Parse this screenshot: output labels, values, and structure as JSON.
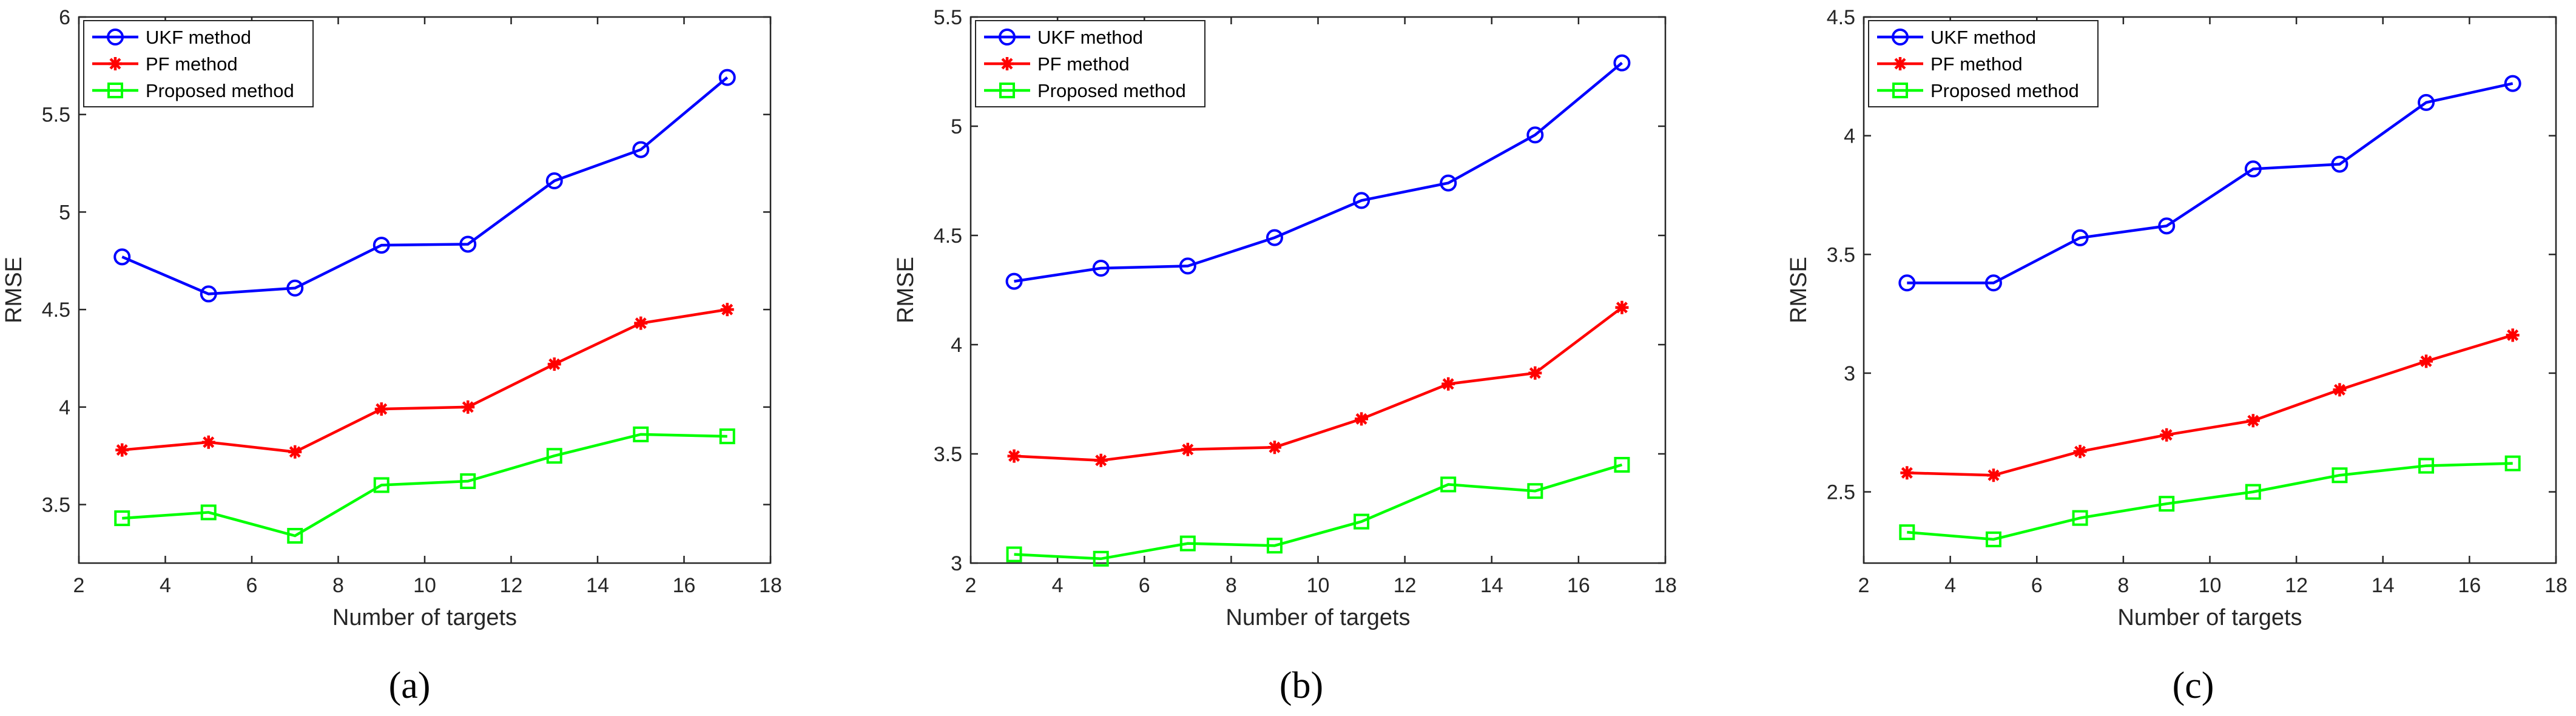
{
  "figure": {
    "captions": [
      "(a)",
      "(b)",
      "(c)"
    ]
  },
  "chart_data": [
    {
      "type": "line",
      "xlabel": "Number of targets",
      "ylabel": "RMSE",
      "xlim": [
        2,
        18
      ],
      "ylim": [
        3.2,
        6
      ],
      "xticks": [
        2,
        4,
        6,
        8,
        10,
        12,
        14,
        16,
        18
      ],
      "yticks": [
        3.5,
        4,
        4.5,
        5,
        5.5,
        6
      ],
      "x": [
        3,
        5,
        7,
        9,
        11,
        13,
        15,
        17
      ],
      "legend_position": "top-left",
      "series": [
        {
          "name": "UKF method",
          "color": "#0000ff",
          "marker": "circle",
          "values": [
            4.77,
            4.58,
            4.61,
            4.83,
            4.835,
            5.16,
            5.32,
            5.69
          ]
        },
        {
          "name": "PF method",
          "color": "#ff0000",
          "marker": "star",
          "values": [
            3.78,
            3.82,
            3.77,
            3.99,
            4.0,
            4.22,
            4.43,
            4.5
          ]
        },
        {
          "name": "Proposed method",
          "color": "#00ff00",
          "marker": "square",
          "values": [
            3.43,
            3.46,
            3.34,
            3.6,
            3.62,
            3.75,
            3.86,
            3.85
          ]
        }
      ]
    },
    {
      "type": "line",
      "xlabel": "Number of targets",
      "ylabel": "RMSE",
      "xlim": [
        2,
        18
      ],
      "ylim": [
        3,
        5.5
      ],
      "xticks": [
        2,
        4,
        6,
        8,
        10,
        12,
        14,
        16,
        18
      ],
      "yticks": [
        3,
        3.5,
        4,
        4.5,
        5,
        5.5
      ],
      "x": [
        3,
        5,
        7,
        9,
        11,
        13,
        15,
        17
      ],
      "legend_position": "top-left",
      "series": [
        {
          "name": "UKF method",
          "color": "#0000ff",
          "marker": "circle",
          "values": [
            4.29,
            4.35,
            4.36,
            4.49,
            4.66,
            4.74,
            4.96,
            5.29
          ]
        },
        {
          "name": "PF method",
          "color": "#ff0000",
          "marker": "star",
          "values": [
            3.49,
            3.47,
            3.52,
            3.53,
            3.66,
            3.82,
            3.87,
            4.17
          ]
        },
        {
          "name": "Proposed method",
          "color": "#00ff00",
          "marker": "square",
          "values": [
            3.04,
            3.02,
            3.09,
            3.08,
            3.19,
            3.36,
            3.33,
            3.45
          ]
        }
      ]
    },
    {
      "type": "line",
      "xlabel": "Number of targets",
      "ylabel": "RMSE",
      "xlim": [
        2,
        18
      ],
      "ylim": [
        2.2,
        4.5
      ],
      "xticks": [
        2,
        4,
        6,
        8,
        10,
        12,
        14,
        16,
        18
      ],
      "yticks": [
        2.5,
        3,
        3.5,
        4,
        4.5
      ],
      "x": [
        3,
        5,
        7,
        9,
        11,
        13,
        15,
        17
      ],
      "legend_position": "top-left",
      "series": [
        {
          "name": "UKF method",
          "color": "#0000ff",
          "marker": "circle",
          "values": [
            3.38,
            3.38,
            3.57,
            3.62,
            3.86,
            3.88,
            4.14,
            4.22
          ]
        },
        {
          "name": "PF method",
          "color": "#ff0000",
          "marker": "star",
          "values": [
            2.58,
            2.57,
            2.67,
            2.74,
            2.8,
            2.93,
            3.05,
            3.16
          ]
        },
        {
          "name": "Proposed method",
          "color": "#00ff00",
          "marker": "square",
          "values": [
            2.33,
            2.3,
            2.39,
            2.45,
            2.5,
            2.57,
            2.61,
            2.62
          ]
        }
      ]
    }
  ]
}
